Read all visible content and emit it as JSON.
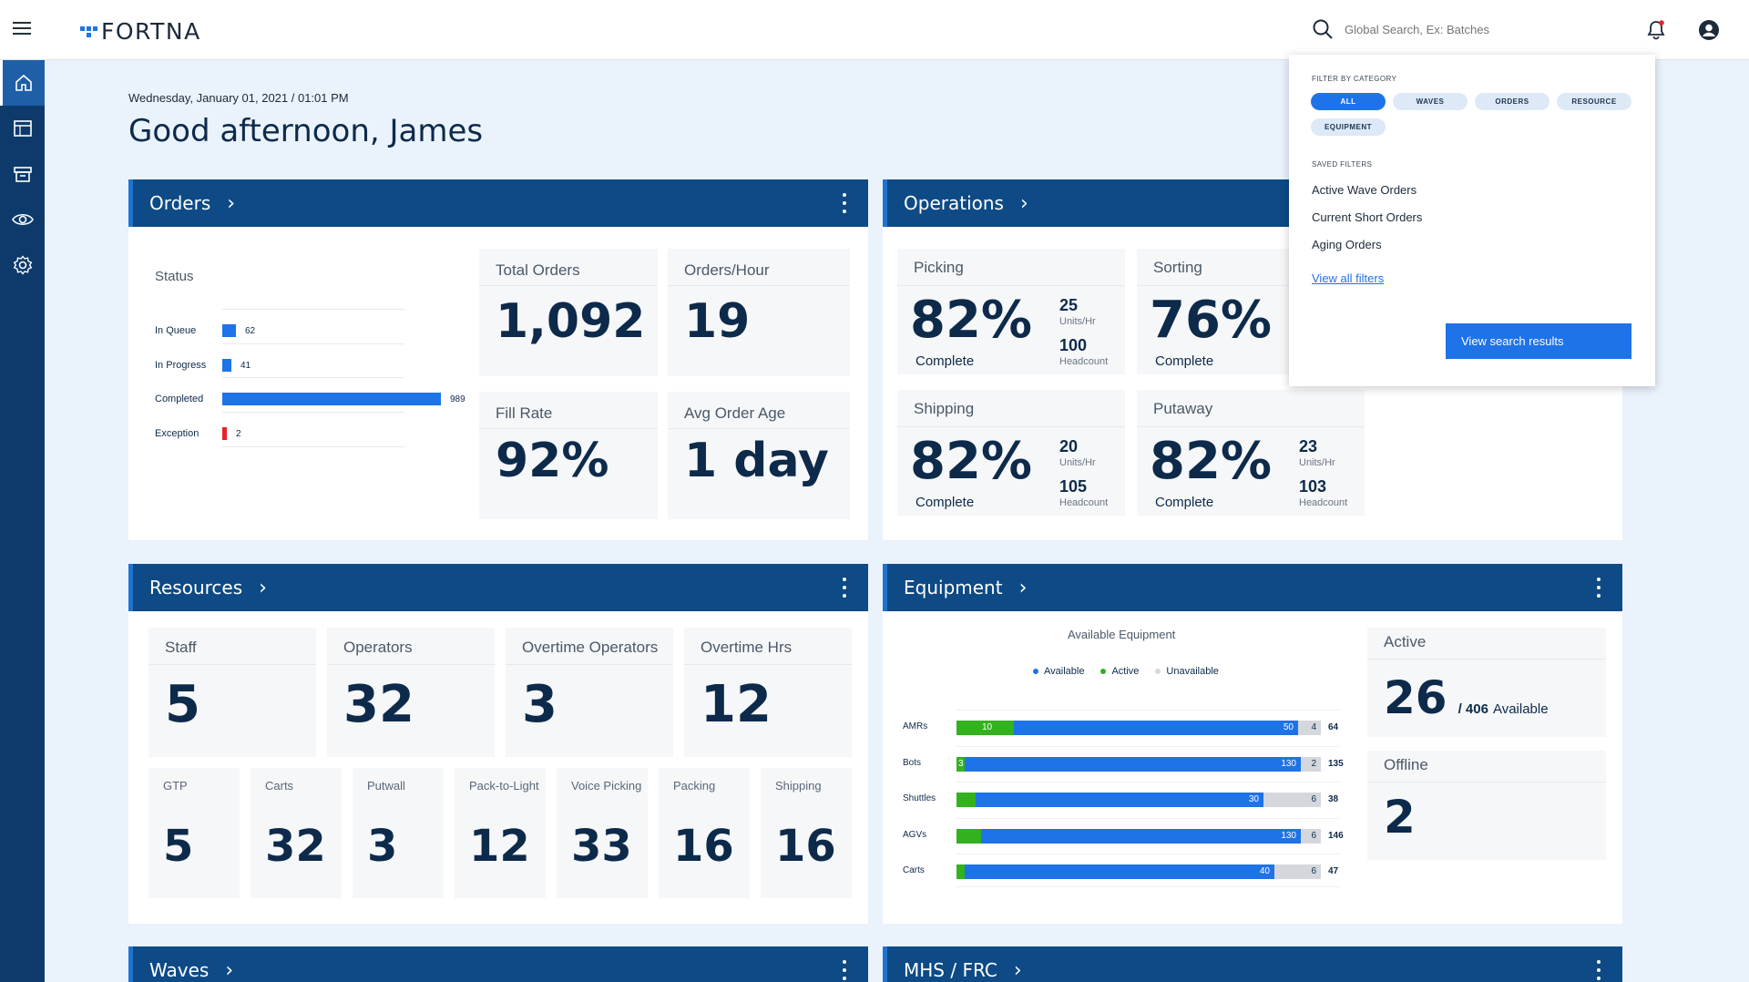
{
  "app": {
    "logo": "FORTNA"
  },
  "search": {
    "placeholder": "Global Search, Ex: Batches"
  },
  "greeting": {
    "date": "Wednesday, January 01, 2021  /  01:01 PM",
    "title": "Good afternoon, James"
  },
  "colors": {
    "brand": "#0d4a86",
    "accent": "#1e73e8",
    "available": "#1e73e8",
    "active": "#33b11f",
    "unavailable": "#d4d8dd",
    "exception": "#e8222a"
  },
  "orders": {
    "title": "Orders",
    "status_title": "Status",
    "status": [
      {
        "label": "In Queue",
        "value": 62
      },
      {
        "label": "In Progress",
        "value": 41
      },
      {
        "label": "Completed",
        "value": 989
      },
      {
        "label": "Exception",
        "value": 2
      }
    ],
    "kpis": [
      {
        "label": "Total Orders",
        "value": "1,092"
      },
      {
        "label": "Orders/Hour",
        "value": "19"
      },
      {
        "label": "Fill Rate",
        "value": "92%"
      },
      {
        "label": "Avg Order Age",
        "value": "1 day"
      }
    ]
  },
  "operations": {
    "title": "Operations",
    "cards": [
      {
        "label": "Picking",
        "pct": "82%",
        "complete": "Complete",
        "rate": "25",
        "rate_unit": "Units/Hr",
        "headcount": "100",
        "headcount_unit": "Headcount"
      },
      {
        "label": "Sorting",
        "pct": "76%",
        "complete": "Complete"
      },
      {
        "label": "Shipping",
        "pct": "82%",
        "complete": "Complete",
        "rate": "20",
        "rate_unit": "Units/Hr",
        "headcount": "105",
        "headcount_unit": "Headcount"
      },
      {
        "label": "Putaway",
        "pct": "82%",
        "complete": "Complete",
        "rate": "23",
        "rate_unit": "Units/Hr",
        "headcount": "103",
        "headcount_unit": "Headcount"
      }
    ]
  },
  "resources": {
    "title": "Resources",
    "top": [
      {
        "label": "Staff",
        "value": "5"
      },
      {
        "label": "Operators",
        "value": "32"
      },
      {
        "label": "Overtime Operators",
        "value": "3"
      },
      {
        "label": "Overtime Hrs",
        "value": "12"
      }
    ],
    "bottom": [
      {
        "label": "GTP",
        "value": "5"
      },
      {
        "label": "Carts",
        "value": "32"
      },
      {
        "label": "Putwall",
        "value": "3"
      },
      {
        "label": "Pack-to-Light",
        "value": "12"
      },
      {
        "label": "Voice Picking",
        "value": "33"
      },
      {
        "label": "Packing",
        "value": "16"
      },
      {
        "label": "Shipping",
        "value": "16"
      }
    ]
  },
  "equipment": {
    "title": "Equipment",
    "chart_title": "Available Equipment",
    "legend": {
      "available": "Available",
      "active": "Active",
      "unavailable": "Unavailable"
    },
    "active_label": "Active",
    "active_value": "26",
    "active_suffix": "/ 406",
    "active_suffix2": "Available",
    "offline_label": "Offline",
    "offline_value": "2"
  },
  "chart_data": {
    "type": "bar",
    "title": "Available Equipment",
    "categories": [
      "AMRs",
      "Bots",
      "Shuttles",
      "AGVs",
      "Carts"
    ],
    "series": [
      {
        "name": "Active",
        "values": [
          10,
          3,
          2,
          10,
          1
        ]
      },
      {
        "name": "Available",
        "values": [
          50,
          130,
          30,
          130,
          40
        ]
      },
      {
        "name": "Unavailable",
        "values": [
          4,
          2,
          6,
          6,
          6
        ]
      }
    ],
    "totals": [
      64,
      135,
      38,
      146,
      47
    ],
    "legend": "top"
  },
  "waves": {
    "title": "Waves"
  },
  "mhs": {
    "title": "MHS / FRC"
  },
  "popup": {
    "filter_title": "FILTER BY CATEGORY",
    "chips": [
      "ALL",
      "WAVES",
      "ORDERS",
      "RESOURCE",
      "EQUIPMENT"
    ],
    "saved_title": "SAVED FILTERS",
    "saved": [
      "Active Wave Orders",
      "Current Short Orders",
      "Aging Orders"
    ],
    "view_all": "View all filters",
    "button": "View search results"
  }
}
